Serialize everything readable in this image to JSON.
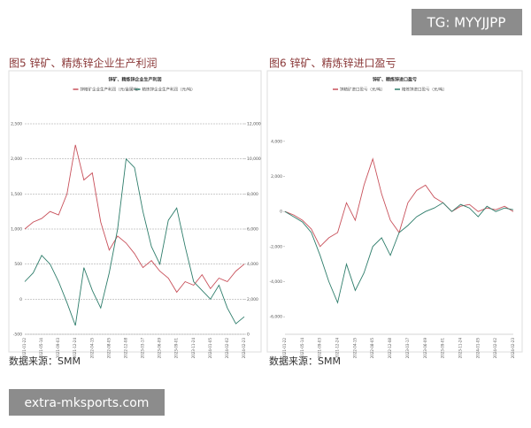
{
  "tag": "TG: MYYJJPP",
  "watermark": "extra-mksports.com",
  "chart_data": [
    {
      "type": "line",
      "caption": "图5 锌矿、精炼锌企业生产利润",
      "title": "锌矿、精炼锌企业生产利润",
      "source": "数据来源：SMM",
      "categories": [
        "2021-01-22",
        null,
        "2021-05-14",
        null,
        "2021-09-03",
        null,
        "2021-12-24",
        null,
        "2022-04-15",
        null,
        "2022-08-05",
        null,
        "2022-12-08",
        null,
        "2023-03-17",
        null,
        "2023-06-09",
        null,
        "2023-09-01",
        null,
        "2023-11-24",
        null,
        "2024-01-05",
        null,
        "2024-02-02",
        null,
        "2024-02-23"
      ],
      "ylim": [
        -500,
        2500
      ],
      "yticks": [
        {
          "value": -500,
          "label": "-500"
        },
        0,
        500,
        {
          "value": 1000,
          "label": "1,000"
        },
        {
          "value": 1500,
          "label": "1,500"
        },
        {
          "value": 2000,
          "label": "2,000"
        },
        {
          "value": 2500,
          "label": "2,500"
        }
      ],
      "y2lim": [
        0,
        12000
      ],
      "y2ticks": [
        0,
        {
          "value": 2000,
          "label": "2,000"
        },
        {
          "value": 4000,
          "label": "4,000"
        },
        {
          "value": 6000,
          "label": "6,000"
        },
        {
          "value": 8000,
          "label": "8,000"
        },
        {
          "value": 10000,
          "label": "10,000"
        },
        {
          "value": 12000,
          "label": "12,000"
        }
      ],
      "grid": true,
      "series": [
        {
          "name": "锌精矿企业生产利润（元/金属吨）",
          "color": "#c8505a",
          "values": [
            1000,
            1100,
            1150,
            1250,
            1200,
            1500,
            2200,
            1700,
            1800,
            1100,
            700,
            900,
            800,
            650,
            450,
            550,
            400,
            300,
            100,
            250,
            200,
            350,
            150,
            300,
            250,
            400,
            500
          ]
        },
        {
          "name": "精炼锌企业生产利润（元/吨）",
          "axis": "y2",
          "color": "#2e7d6b",
          "values": [
            3000,
            3500,
            4500,
            4000,
            3000,
            1800,
            500,
            3800,
            2500,
            1500,
            3500,
            6000,
            10000,
            9500,
            7000,
            5000,
            4000,
            6500,
            7200,
            5000,
            3000,
            2500,
            2000,
            2800,
            1500,
            600,
            1000
          ]
        }
      ]
    },
    {
      "type": "line",
      "caption": "图6 锌矿、精炼锌进口盈亏",
      "title": "锌矿、精炼锌进口盈亏",
      "source": "数据来源：SMM",
      "categories": [
        "2021-01-22",
        null,
        "2021-05-14",
        null,
        "2021-09-03",
        null,
        "2021-12-24",
        null,
        "2022-04-15",
        null,
        "2022-08-05",
        null,
        "2022-12-08",
        null,
        "2023-03-17",
        null,
        "2023-06-09",
        null,
        "2023-09-01",
        null,
        "2023-11-24",
        null,
        "2024-01-05",
        null,
        "2024-02-02",
        null,
        "2024-02-23"
      ],
      "ylim": [
        -7000,
        5000
      ],
      "yticks": [
        {
          "value": -6000,
          "label": "-6,000"
        },
        {
          "value": -4000,
          "label": "-4,000"
        },
        {
          "value": -2000,
          "label": "-2,000"
        },
        0,
        {
          "value": 2000,
          "label": "2,000"
        },
        {
          "value": 4000,
          "label": "4,000"
        }
      ],
      "grid": false,
      "series": [
        {
          "name": "锌精矿进口盈亏（元/吨）",
          "color": "#c8505a",
          "values": [
            0,
            -200,
            -500,
            -1000,
            -2000,
            -1500,
            -1200,
            500,
            -500,
            1500,
            3000,
            1000,
            -500,
            -1200,
            500,
            1200,
            1500,
            800,
            500,
            0,
            300,
            400,
            0,
            200,
            100,
            300,
            0
          ]
        },
        {
          "name": "精炼锌进口盈亏（元/吨）",
          "color": "#2e7d6b",
          "values": [
            0,
            -300,
            -600,
            -1200,
            -2500,
            -4000,
            -5200,
            -3000,
            -4500,
            -3500,
            -2000,
            -1500,
            -2500,
            -1200,
            -800,
            -300,
            0,
            200,
            500,
            0,
            400,
            200,
            -300,
            300,
            0,
            200,
            100
          ]
        }
      ]
    }
  ]
}
